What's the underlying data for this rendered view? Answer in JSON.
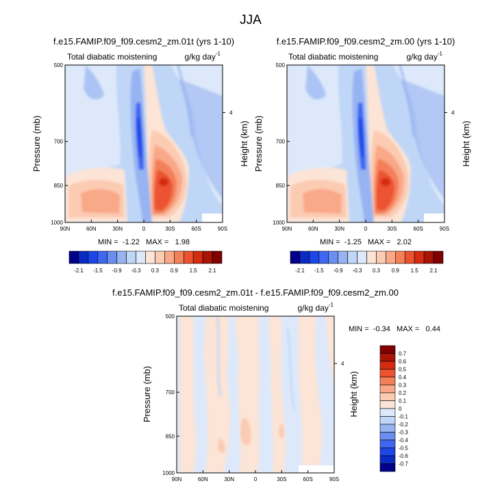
{
  "figure": {
    "title": "JJA"
  },
  "chart_data": [
    {
      "type": "heatmap",
      "title": "f.e15.FAMIP.f09_f09.cesm2_zm.01t (yrs 1-10)",
      "left_label": "Total diabatic moistening",
      "units_base": "g/kg day",
      "units_exp": "-1",
      "xlabel": "",
      "ylabel": "Pressure (mb)",
      "ylabel_right": "Height (km)",
      "x_ticks": [
        "90N",
        "60N",
        "30N",
        "0",
        "30S",
        "60S",
        "90S"
      ],
      "y_ticks": [
        "500",
        "700",
        "850",
        "1000"
      ],
      "y_ticks_right": [
        "4"
      ],
      "ylim": [
        1000,
        500
      ],
      "stats": "MIN =  -1.22   MAX =   1.98",
      "min": -1.22,
      "max": 1.98,
      "colorbar": {
        "orientation": "horizontal",
        "levels": [
          -2.1,
          -1.8,
          -1.5,
          -1.2,
          -0.9,
          -0.6,
          -0.3,
          0,
          0.3,
          0.6,
          0.9,
          1.2,
          1.5,
          1.8,
          2.1
        ],
        "labels": [
          "-2.1",
          "-1.5",
          "-0.9",
          "-0.3",
          "0.3",
          "0.9",
          "1.5",
          "2.1"
        ]
      }
    },
    {
      "type": "heatmap",
      "title": "f.e15.FAMIP.f09_f09.cesm2_zm.00 (yrs 1-10)",
      "left_label": "Total diabatic moistening",
      "units_base": "g/kg day",
      "units_exp": "-1",
      "xlabel": "",
      "ylabel": "Pressure (mb)",
      "ylabel_right": "Height (km)",
      "x_ticks": [
        "90N",
        "60N",
        "30N",
        "0",
        "30S",
        "60S",
        "90S"
      ],
      "y_ticks": [
        "500",
        "700",
        "850",
        "1000"
      ],
      "y_ticks_right": [
        "4"
      ],
      "ylim": [
        1000,
        500
      ],
      "stats": "MIN =  -1.25   MAX =   2.02",
      "min": -1.25,
      "max": 2.02,
      "colorbar": {
        "orientation": "horizontal",
        "levels": [
          -2.1,
          -1.8,
          -1.5,
          -1.2,
          -0.9,
          -0.6,
          -0.3,
          0,
          0.3,
          0.6,
          0.9,
          1.2,
          1.5,
          1.8,
          2.1
        ],
        "labels": [
          "-2.1",
          "-1.5",
          "-0.9",
          "-0.3",
          "0.3",
          "0.9",
          "1.5",
          "2.1"
        ]
      }
    },
    {
      "type": "heatmap",
      "title": "f.e15.FAMIP.f09_f09.cesm2_zm.01t - f.e15.FAMIP.f09_f09.cesm2_zm.00",
      "left_label": "Total diabatic moistening",
      "units_base": "g/kg day",
      "units_exp": "-1",
      "xlabel": "",
      "ylabel": "Pressure (mb)",
      "ylabel_right": "Height (km)",
      "x_ticks": [
        "90N",
        "60N",
        "30N",
        "0",
        "30S",
        "60S",
        "90S"
      ],
      "y_ticks": [
        "500",
        "700",
        "850",
        "1000"
      ],
      "y_ticks_right": [
        "4"
      ],
      "ylim": [
        1000,
        500
      ],
      "stats": "MIN =  -0.34   MAX =   0.44",
      "min": -0.34,
      "max": 0.44,
      "colorbar": {
        "orientation": "vertical",
        "levels": [
          -0.7,
          -0.6,
          -0.5,
          -0.4,
          -0.3,
          -0.2,
          -0.1,
          0,
          0.1,
          0.2,
          0.3,
          0.4,
          0.5,
          0.6,
          0.7
        ],
        "labels": [
          "-0.7",
          "-0.6",
          "-0.5",
          "-0.4",
          "-0.3",
          "-0.2",
          "-0.1",
          "0",
          "0.1",
          "0.2",
          "0.3",
          "0.4",
          "0.5",
          "0.6",
          "0.7"
        ]
      }
    }
  ],
  "palette": [
    "#00008b",
    "#0a2bc2",
    "#1c46e6",
    "#3f68f0",
    "#6a8ff0",
    "#97b3f2",
    "#c0d6f7",
    "#dde9fa",
    "#fce4d6",
    "#fbcbb2",
    "#f9a888",
    "#f4805a",
    "#ec5230",
    "#d42c10",
    "#a81406",
    "#800000"
  ]
}
